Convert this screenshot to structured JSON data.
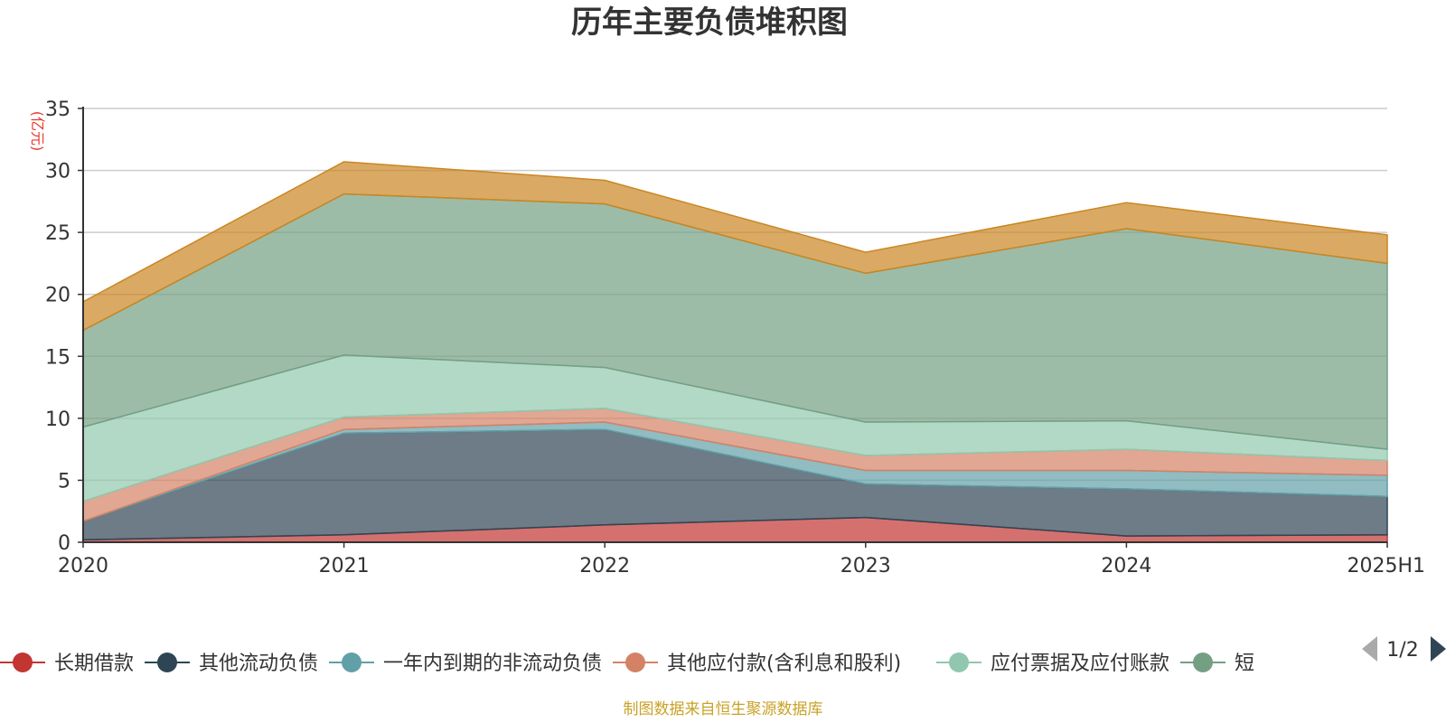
{
  "chart_data": {
    "type": "area",
    "stacked": true,
    "title": "历年主要负债堆积图",
    "unit_label": "(亿元)",
    "categories": [
      "2020",
      "2021",
      "2022",
      "2023",
      "2024",
      "2025H1"
    ],
    "ylim": [
      0,
      35
    ],
    "yticks": [
      0,
      5,
      10,
      15,
      20,
      25,
      30,
      35
    ],
    "grid": true,
    "series": [
      {
        "name": "长期借款",
        "color": "#c23531",
        "values": [
          0.2,
          0.6,
          1.4,
          2.0,
          0.5,
          0.6
        ]
      },
      {
        "name": "其他流动负债",
        "color": "#2f4554",
        "values": [
          1.5,
          8.2,
          7.7,
          2.7,
          3.8,
          3.1
        ]
      },
      {
        "name": "一年内到期的非流动负债",
        "color": "#61a0a8",
        "values": [
          0.0,
          0.3,
          0.6,
          1.1,
          1.5,
          1.7
        ]
      },
      {
        "name": "其他应付款(含利息和股利)",
        "color": "#d48265",
        "values": [
          1.6,
          1.0,
          1.1,
          1.2,
          1.7,
          1.2
        ]
      },
      {
        "name": "应付票据及应付账款",
        "color": "#91c7ae",
        "values": [
          6.0,
          5.0,
          3.3,
          2.7,
          2.3,
          0.9
        ]
      },
      {
        "name": "短期借款",
        "color": "#749f83",
        "values": [
          7.8,
          13.0,
          13.2,
          12.0,
          15.5,
          15.0
        ]
      },
      {
        "name": "",
        "color": "#ca8622",
        "values": [
          2.3,
          2.6,
          1.9,
          1.7,
          2.1,
          2.3
        ]
      }
    ]
  },
  "legend": {
    "visible_items": [
      {
        "label": "长期借款",
        "color": "#c23531"
      },
      {
        "label": "其他流动负债",
        "color": "#2f4554"
      },
      {
        "label": "一年内到期的非流动负债",
        "color": "#61a0a8"
      },
      {
        "label": "其他应付款(含利息和股利)",
        "color": "#d48265"
      },
      {
        "label": "应付票据及应付账款",
        "color": "#91c7ae"
      },
      {
        "label": "短",
        "color": "#749f83"
      }
    ],
    "page_indicator": "1/2"
  },
  "footer": "制图数据来自恒生聚源数据库"
}
